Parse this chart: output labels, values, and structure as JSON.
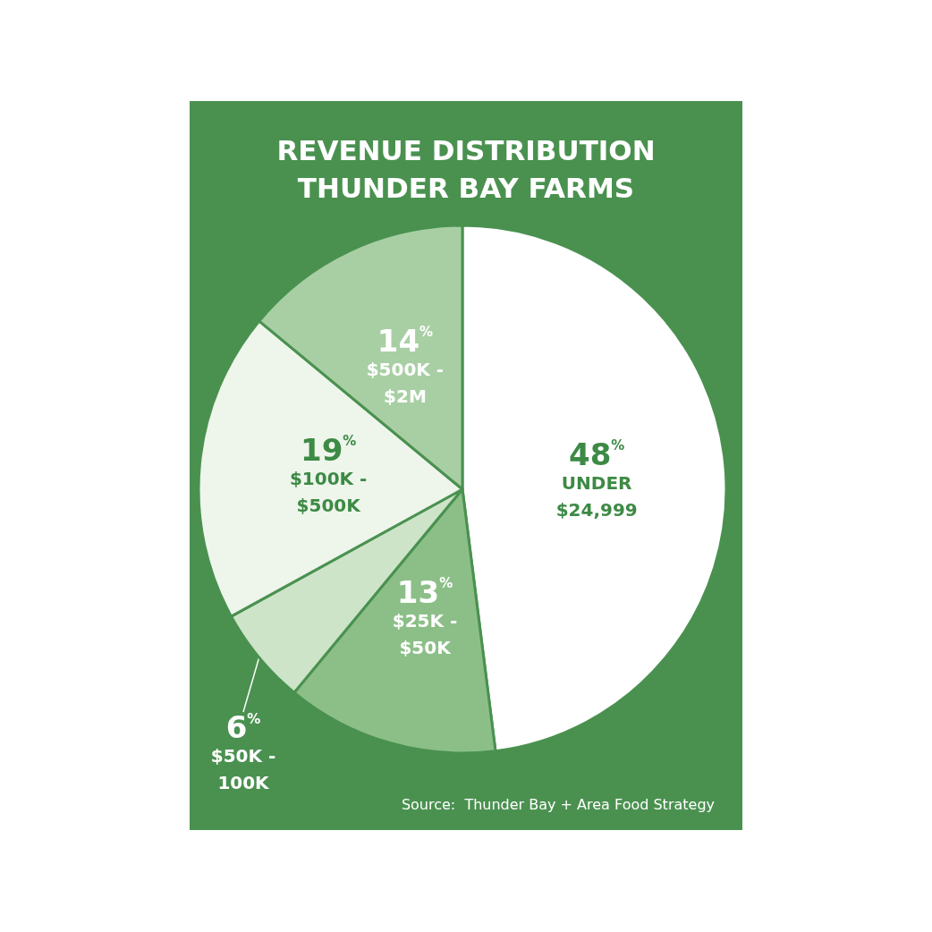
{
  "chart_data": {
    "type": "pie",
    "title": "REVENUE DISTRIBUTION",
    "subtitle": "THUNDER BAY FARMS",
    "categories": [
      "UNDER $24,999",
      "$25K - $50K",
      "$50K - 100K",
      "$100K - $500K",
      "$500K - $2M"
    ],
    "values": [
      48,
      13,
      6,
      19,
      14
    ],
    "colors": [
      "#ffffff",
      "#8cbf88",
      "#cde4c9",
      "#eef5eb",
      "#a8cfa4"
    ],
    "value_labels": [
      "48%",
      "13%",
      "6%",
      "19%",
      "14%"
    ],
    "legend": false,
    "annotations": [
      "Source:  Thunder Bay + Area Food Strategy"
    ]
  }
}
